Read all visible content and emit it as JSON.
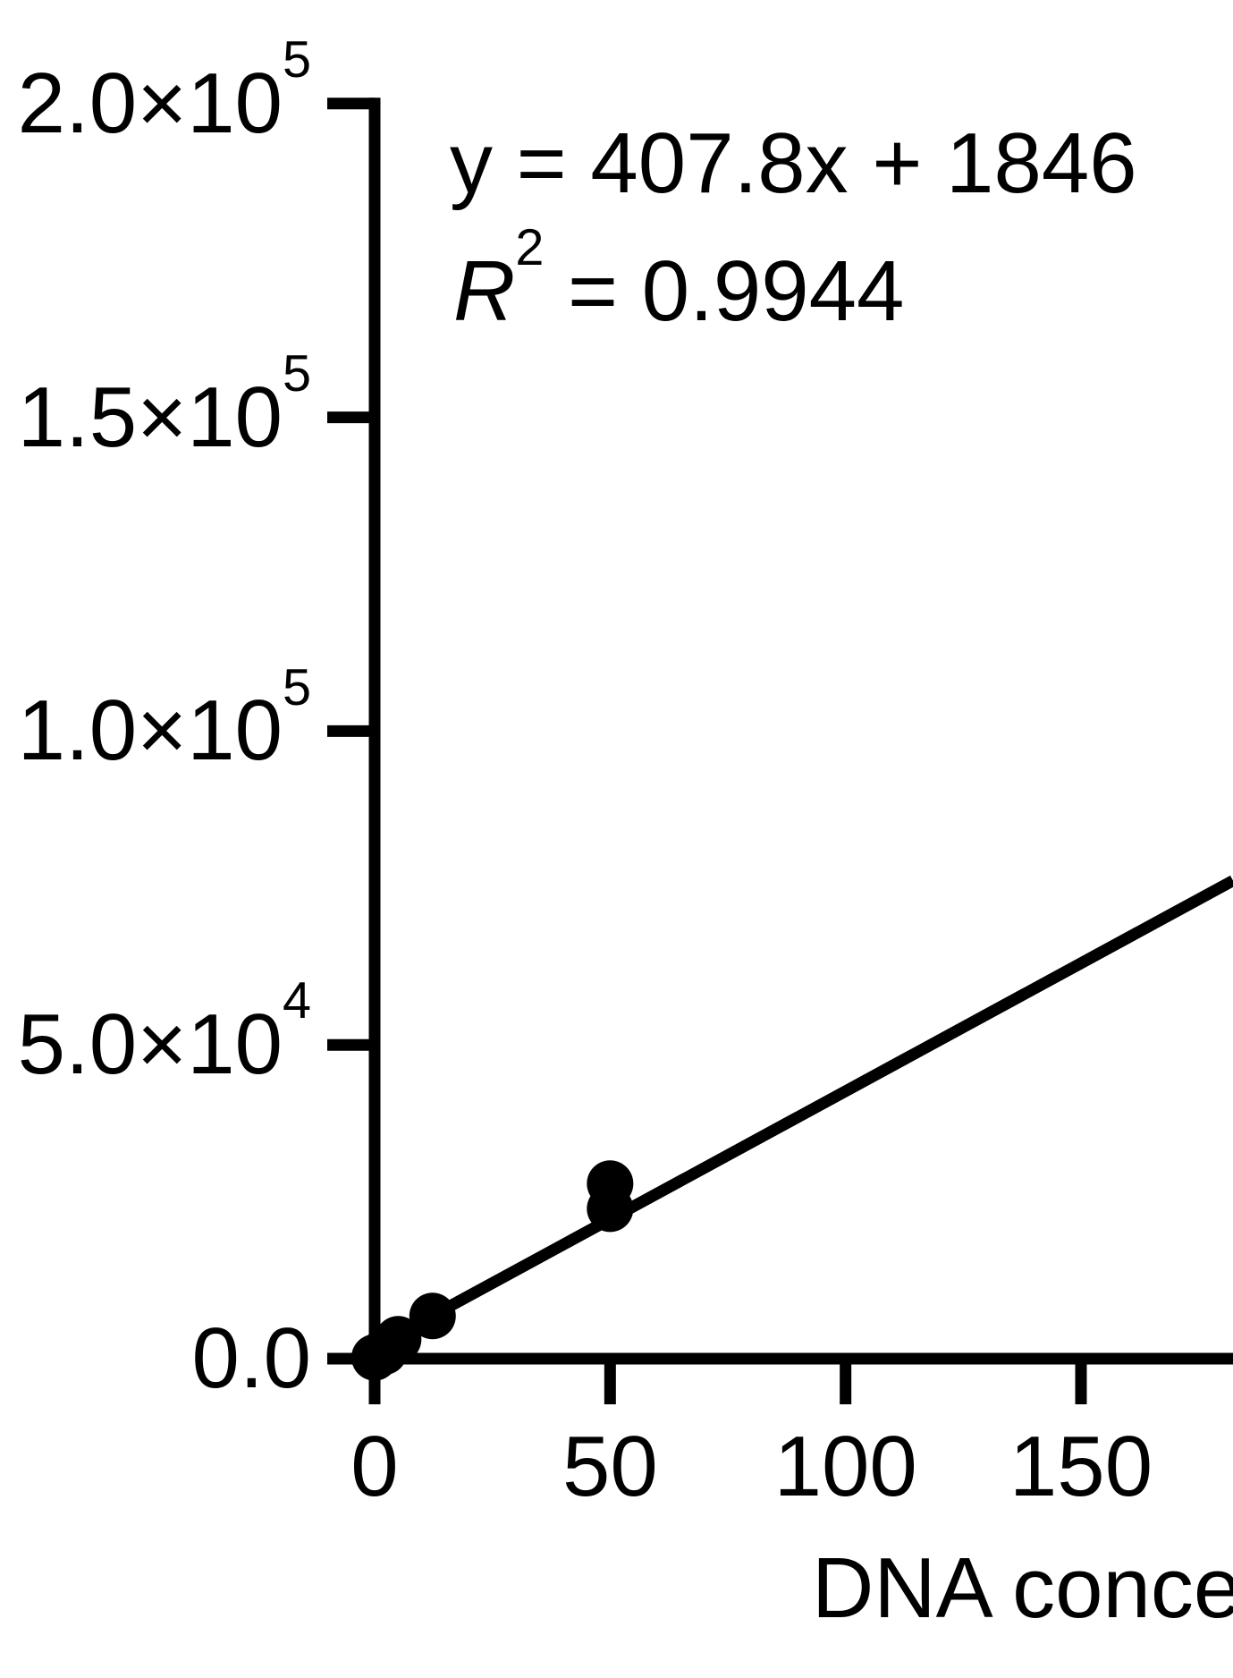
{
  "figure": {
    "background": "#ffffff",
    "ink": "#000000"
  },
  "annotation": {
    "equation_line": "y = 407.8x + 1846",
    "r2_symbol": "R",
    "r2_exponent": "2",
    "r2_value_part": " = 0.9944"
  },
  "chart_data": {
    "type": "scatter",
    "title": "",
    "xlabel": "DNA conce",
    "ylabel": "",
    "xlim": [
      0,
      182
    ],
    "ylim": [
      0,
      200000
    ],
    "grid": false,
    "legend": "none",
    "fit_line": {
      "equation": "y = 407.8x + 1846",
      "slope": 407.8,
      "intercept": 1846,
      "r_squared": 0.9944
    },
    "points": [
      {
        "x": 0,
        "y": 200
      },
      {
        "x": 2,
        "y": 1100
      },
      {
        "x": 5,
        "y": 3100
      },
      {
        "x": 12.3,
        "y": 6800
      },
      {
        "x": 50,
        "y": 23900
      },
      {
        "x": 50,
        "y": 27900
      }
    ],
    "xticks": [
      {
        "value": 0,
        "label": "0"
      },
      {
        "value": 50,
        "label": "50"
      },
      {
        "value": 100,
        "label": "100"
      },
      {
        "value": 150,
        "label": "150"
      }
    ],
    "yticks": [
      {
        "value": 0,
        "mantissa": "0.0",
        "exp": ""
      },
      {
        "value": 50000,
        "mantissa": "5.0×10",
        "exp": "4"
      },
      {
        "value": 100000,
        "mantissa": "1.0×10",
        "exp": "5"
      },
      {
        "value": 150000,
        "mantissa": "1.5×10",
        "exp": "5"
      },
      {
        "value": 200000,
        "mantissa": "2.0×10",
        "exp": "5"
      }
    ]
  }
}
